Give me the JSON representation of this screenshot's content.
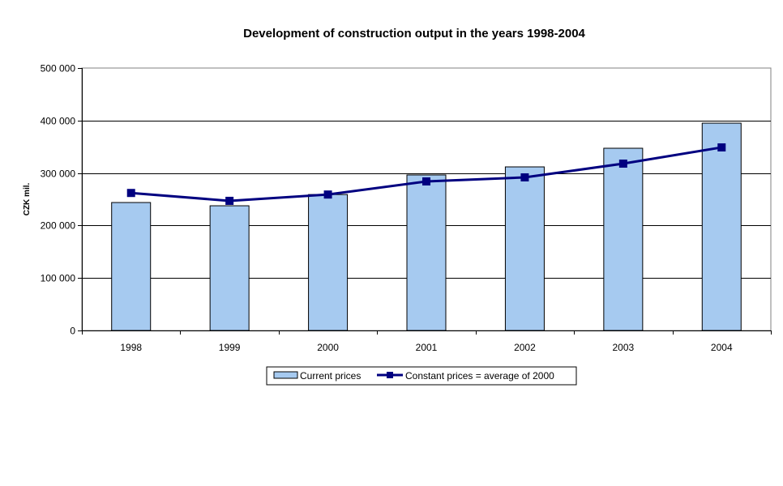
{
  "chart_data": {
    "type": "bar",
    "title": "Development of construction output in the years 1998-2004",
    "xlabel": "",
    "ylabel": "CZK mil.",
    "categories": [
      "1998",
      "1999",
      "2000",
      "2001",
      "2002",
      "2003",
      "2004"
    ],
    "ylim": [
      0,
      500000
    ],
    "yticks": [
      0,
      100000,
      200000,
      300000,
      400000,
      500000
    ],
    "ytick_labels": [
      "0",
      "100 000",
      "200 000",
      "300 000",
      "400 000",
      "500 000"
    ],
    "grid": true,
    "legend_position": "bottom",
    "series": [
      {
        "name": "Current prices",
        "type": "bar",
        "color": "#a6caf0",
        "values": [
          243800,
          237600,
          259000,
          296300,
          311700,
          347200,
          395000
        ]
      },
      {
        "name": "Constant prices = average of 2000",
        "type": "line",
        "marker": "square",
        "color": "#000080",
        "values": [
          262000,
          247000,
          259000,
          284000,
          291700,
          317900,
          348800
        ]
      }
    ]
  }
}
